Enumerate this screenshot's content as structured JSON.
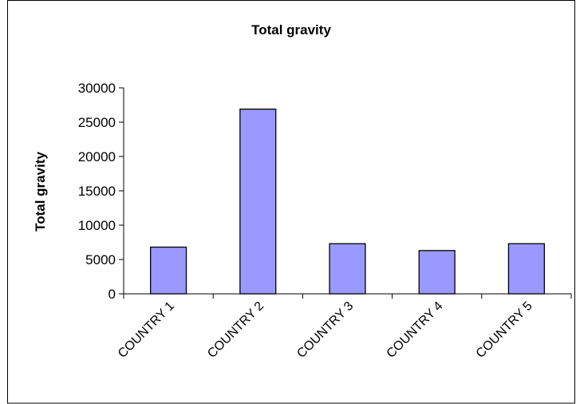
{
  "chart_data": {
    "type": "bar",
    "title": "Total gravity",
    "xlabel": "",
    "ylabel": "Total gravity",
    "categories": [
      "COUNTRY 1",
      "COUNTRY 2",
      "COUNTRY 3",
      "COUNTRY 4",
      "COUNTRY 5"
    ],
    "values": [
      6800,
      26900,
      7300,
      6300,
      7300
    ],
    "ylim": [
      0,
      30000
    ],
    "yticks": [
      "0",
      "5000",
      "10000",
      "15000",
      "20000",
      "25000",
      "30000"
    ],
    "grid": false,
    "legend": "none",
    "colors": {
      "bar_fill": "#9999ff",
      "bar_stroke": "#000000",
      "axis": "#000000",
      "frame": "#000000"
    }
  }
}
